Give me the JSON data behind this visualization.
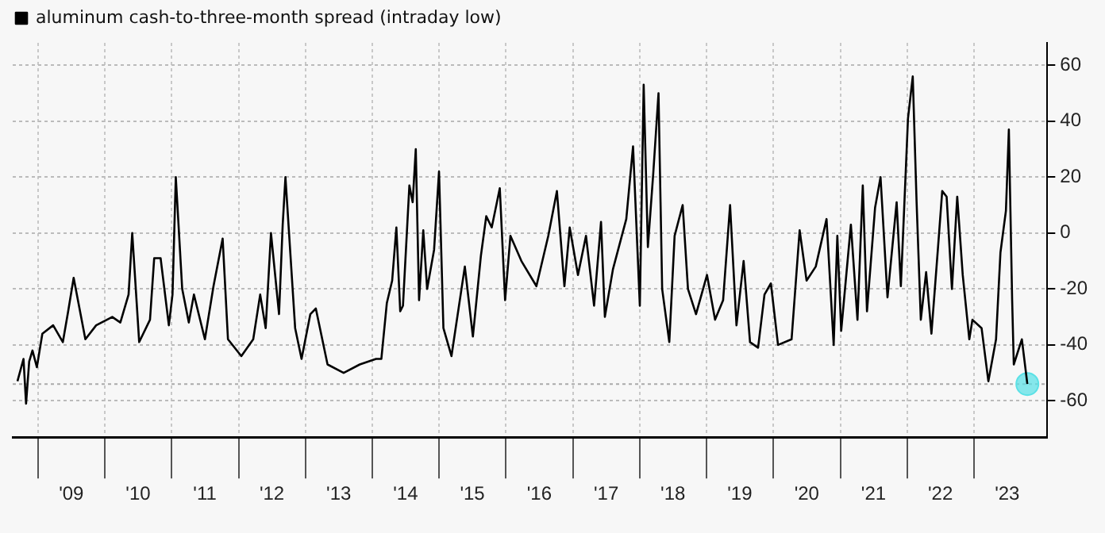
{
  "chart_data": {
    "type": "line",
    "legend": "top left",
    "grid": true,
    "marker": "none",
    "line_style": "solid",
    "xlim": [
      "2008-08-15",
      "2024-02-05"
    ],
    "xticks": [
      {
        "value": "2009-01-01",
        "label": null
      },
      {
        "value": "2009-07-01",
        "label": "'09"
      },
      {
        "value": "2010-01-01",
        "label": null
      },
      {
        "value": "2010-07-01",
        "label": "'10"
      },
      {
        "value": "2011-01-01",
        "label": null
      },
      {
        "value": "2011-07-01",
        "label": "'11"
      },
      {
        "value": "2012-01-01",
        "label": null
      },
      {
        "value": "2012-07-01",
        "label": "'12"
      },
      {
        "value": "2013-01-01",
        "label": null
      },
      {
        "value": "2013-07-01",
        "label": "'13"
      },
      {
        "value": "2014-01-01",
        "label": null
      },
      {
        "value": "2014-07-01",
        "label": "'14"
      },
      {
        "value": "2015-01-01",
        "label": null
      },
      {
        "value": "2015-07-01",
        "label": "'15"
      },
      {
        "value": "2016-01-01",
        "label": null
      },
      {
        "value": "2016-07-01",
        "label": "'16"
      },
      {
        "value": "2017-01-01",
        "label": null
      },
      {
        "value": "2017-07-01",
        "label": "'17"
      },
      {
        "value": "2018-01-01",
        "label": null
      },
      {
        "value": "2018-07-01",
        "label": "'18"
      },
      {
        "value": "2019-01-01",
        "label": null
      },
      {
        "value": "2019-07-01",
        "label": "'19"
      },
      {
        "value": "2020-01-01",
        "label": null
      },
      {
        "value": "2020-07-01",
        "label": "'20"
      },
      {
        "value": "2021-01-01",
        "label": null
      },
      {
        "value": "2021-07-01",
        "label": "'21"
      },
      {
        "value": "2022-01-01",
        "label": null
      },
      {
        "value": "2022-07-01",
        "label": "'22"
      },
      {
        "value": "2023-01-01",
        "label": null
      },
      {
        "value": "2023-07-01",
        "label": "'23"
      }
    ],
    "ylim": [
      -73,
      68
    ],
    "yticks": [
      -60,
      -40,
      -20,
      0,
      20,
      40,
      60
    ],
    "ref_lines": [
      {
        "axis": "y",
        "value": -54,
        "color": "#aaaaaa",
        "line_style": "dotted"
      }
    ],
    "series": [
      {
        "name": "aluminum cash-to-three-month spread (intraday low)",
        "color": "#000000",
        "x": [
          "2008-09-10",
          "2008-10-13",
          "2008-10-27",
          "2008-11-13",
          "2008-12-01",
          "2008-12-25",
          "2009-01-24",
          "2009-03-24",
          "2009-05-16",
          "2009-06-14",
          "2009-07-14",
          "2009-09-16",
          "2009-11-14",
          "2010-02-10",
          "2010-03-26",
          "2010-05-10",
          "2010-05-30",
          "2010-07-07",
          "2010-09-04",
          "2010-09-27",
          "2010-11-01",
          "2010-12-16",
          "2011-01-05",
          "2011-01-23",
          "2011-02-27",
          "2011-04-04",
          "2011-05-02",
          "2011-07-01",
          "2011-08-17",
          "2011-10-06",
          "2011-11-04",
          "2012-01-16",
          "2012-03-21",
          "2012-04-28",
          "2012-05-28",
          "2012-06-26",
          "2012-08-09",
          "2012-08-29",
          "2012-09-13",
          "2012-11-05",
          "2012-12-10",
          "2013-01-27",
          "2013-02-26",
          "2013-05-01",
          "2013-07-28",
          "2013-10-24",
          "2014-01-21",
          "2014-02-19",
          "2014-03-21",
          "2014-04-19",
          "2014-05-12",
          "2014-06-02",
          "2014-06-17",
          "2014-07-22",
          "2014-08-09",
          "2014-08-26",
          "2014-09-13",
          "2014-10-06",
          "2014-10-27",
          "2014-12-04",
          "2014-12-31",
          "2015-01-24",
          "2015-03-09",
          "2015-05-21",
          "2015-07-04",
          "2015-08-17",
          "2015-09-15",
          "2015-10-15",
          "2015-11-28",
          "2015-12-27",
          "2016-01-25",
          "2016-03-25",
          "2016-06-15",
          "2016-08-19",
          "2016-10-05",
          "2016-11-15",
          "2016-12-14",
          "2017-01-28",
          "2017-03-13",
          "2017-04-26",
          "2017-06-03",
          "2017-06-24",
          "2017-08-07",
          "2017-10-19",
          "2017-11-25",
          "2018-01-01",
          "2018-01-22",
          "2018-02-14",
          "2018-03-15",
          "2018-04-13",
          "2018-05-03",
          "2018-06-11",
          "2018-07-10",
          "2018-08-23",
          "2018-09-21",
          "2018-11-04",
          "2019-01-03",
          "2019-02-16",
          "2019-04-01",
          "2019-05-09",
          "2019-06-13",
          "2019-07-22",
          "2019-08-26",
          "2019-10-09",
          "2019-11-13",
          "2019-12-18",
          "2020-01-26",
          "2020-04-09",
          "2020-05-23",
          "2020-06-30",
          "2020-08-19",
          "2020-10-17",
          "2020-11-25",
          "2020-12-15",
          "2021-01-05",
          "2021-02-27",
          "2021-04-04",
          "2021-05-03",
          "2021-05-26",
          "2021-07-09",
          "2021-08-08",
          "2021-09-15",
          "2021-11-04",
          "2021-11-27",
          "2022-01-05",
          "2022-01-31",
          "2022-02-21",
          "2022-03-16",
          "2022-04-14",
          "2022-05-13",
          "2022-06-17",
          "2022-07-11",
          "2022-08-04",
          "2022-09-02",
          "2022-10-01",
          "2022-10-31",
          "2022-12-06",
          "2022-12-23",
          "2023-02-11",
          "2023-03-20",
          "2023-05-01",
          "2023-05-25",
          "2023-06-24",
          "2023-07-10",
          "2023-07-28",
          "2023-08-06",
          "2023-09-19",
          "2023-10-19"
        ],
        "values": [
          -53,
          -45,
          -61,
          -46,
          -42,
          -48,
          -36,
          -33,
          -39,
          -28,
          -16,
          -38,
          -33,
          -30,
          -32,
          -22,
          0,
          -39,
          -31,
          -9,
          -9,
          -33,
          -22,
          20,
          -20,
          -32,
          -22,
          -38,
          -19,
          -2,
          -38,
          -44,
          -38,
          -22,
          -34,
          0,
          -29,
          3,
          20,
          -34,
          -45,
          -29,
          -27,
          -47,
          -50,
          -47,
          -45,
          -45,
          -25,
          -17,
          2,
          -28,
          -26,
          17,
          11,
          30,
          -24,
          1,
          -20,
          -6,
          22,
          -34,
          -44,
          -12,
          -37,
          -8,
          6,
          2,
          16,
          -24,
          -1,
          -10,
          -19,
          -1,
          15,
          -19,
          2,
          -15,
          -1,
          -26,
          4,
          -30,
          -13,
          5,
          31,
          -26,
          53,
          -5,
          21,
          50,
          -20,
          -39,
          -1,
          10,
          -20,
          -29,
          -15,
          -31,
          -24,
          10,
          -33,
          -10,
          -39,
          -41,
          -22,
          -18,
          -40,
          -38,
          1,
          -17,
          -12,
          5,
          -40,
          -1,
          -35,
          3,
          -31,
          17,
          -28,
          9,
          20,
          -23,
          11,
          -19,
          41,
          56,
          11,
          -31,
          -14,
          -36,
          -6,
          15,
          13,
          -20,
          13,
          -15,
          -38,
          -31,
          -34,
          -53,
          -38,
          -7,
          8,
          37,
          -24,
          -47,
          -38,
          -54
        ]
      },
      {
        "color": "#5ce1e6",
        "type": "scatter",
        "marker": "circle",
        "x": [
          "2023-10-19"
        ],
        "values": [
          -54
        ]
      }
    ]
  }
}
